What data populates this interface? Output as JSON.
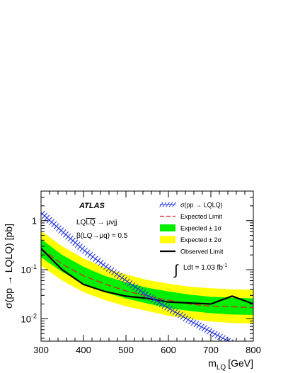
{
  "chart_data": {
    "type": "line",
    "x_label_main": "m",
    "x_label_sub": "LQ",
    "x_label_unit": "[GeV]",
    "y_label": "σ(pp → LQLQ) [pb]",
    "y_scale": "log",
    "xlim": [
      300,
      800
    ],
    "ylim": [
      0.0035,
      4
    ],
    "x_ticks": [
      300,
      400,
      500,
      600,
      700,
      800
    ],
    "y_ticks": [
      {
        "value": 1,
        "base": "1",
        "exp": ""
      },
      {
        "value": 0.1,
        "base": "10",
        "exp": "-1"
      },
      {
        "value": 0.01,
        "base": "10",
        "exp": "-2"
      }
    ],
    "colors": {
      "theory": "#2233dd",
      "expected": "#dd2222",
      "band1": "#00ee00",
      "band2": "#ffff00",
      "observed": "#000000"
    },
    "annotations": {
      "experiment": "ATLAS",
      "process_prefix": "LQ",
      "process_overline": "LQ",
      "process_suffix": " → μνjj",
      "beta": "β(LQ→μq) = 0.5",
      "lumi_text": "Ldt = 1.03 fb",
      "lumi_exp": "-1"
    },
    "legend": {
      "placement": "top-right",
      "items": [
        {
          "key": "theory",
          "label": "σ(pp → LQLQ)"
        },
        {
          "key": "expected",
          "label": "Expected Limit"
        },
        {
          "key": "band1",
          "label": "Expected ± 1σ"
        },
        {
          "key": "band2",
          "label": "Expected ± 2σ"
        },
        {
          "key": "observed",
          "label": "Observed Limit"
        }
      ]
    },
    "series": [
      {
        "key": "band2",
        "x": [
          300,
          350,
          400,
          450,
          500,
          550,
          600,
          650,
          700,
          750,
          800
        ],
        "low": [
          0.12,
          0.06,
          0.035,
          0.024,
          0.018,
          0.0145,
          0.0115,
          0.01,
          0.0088,
          0.0082,
          0.008
        ],
        "high": [
          0.62,
          0.3,
          0.17,
          0.11,
          0.08,
          0.062,
          0.052,
          0.045,
          0.042,
          0.04,
          0.039
        ]
      },
      {
        "key": "band1",
        "x": [
          300,
          350,
          400,
          450,
          500,
          550,
          600,
          650,
          700,
          750,
          800
        ],
        "low": [
          0.18,
          0.09,
          0.052,
          0.035,
          0.026,
          0.0205,
          0.0165,
          0.0145,
          0.013,
          0.0122,
          0.012
        ],
        "high": [
          0.42,
          0.2,
          0.115,
          0.075,
          0.055,
          0.043,
          0.036,
          0.031,
          0.028,
          0.027,
          0.026
        ]
      },
      {
        "key": "expected",
        "x": [
          300,
          350,
          400,
          450,
          500,
          550,
          600,
          650,
          700,
          750,
          800
        ],
        "y": [
          0.27,
          0.13,
          0.075,
          0.051,
          0.037,
          0.029,
          0.024,
          0.02,
          0.018,
          0.0175,
          0.017
        ]
      },
      {
        "key": "observed",
        "x": [
          300,
          350,
          400,
          450,
          500,
          550,
          600,
          650,
          700,
          750,
          800
        ],
        "y": [
          0.27,
          0.1,
          0.05,
          0.036,
          0.029,
          0.026,
          0.022,
          0.021,
          0.02,
          0.029,
          0.02
        ]
      },
      {
        "key": "theory",
        "x": [
          300,
          350,
          400,
          450,
          500,
          550,
          600,
          650,
          700,
          750,
          800
        ],
        "y": [
          1.45,
          0.6,
          0.255,
          0.12,
          0.06,
          0.03,
          0.0165,
          0.0092,
          0.0054,
          0.0032,
          0.0019
        ]
      }
    ]
  }
}
